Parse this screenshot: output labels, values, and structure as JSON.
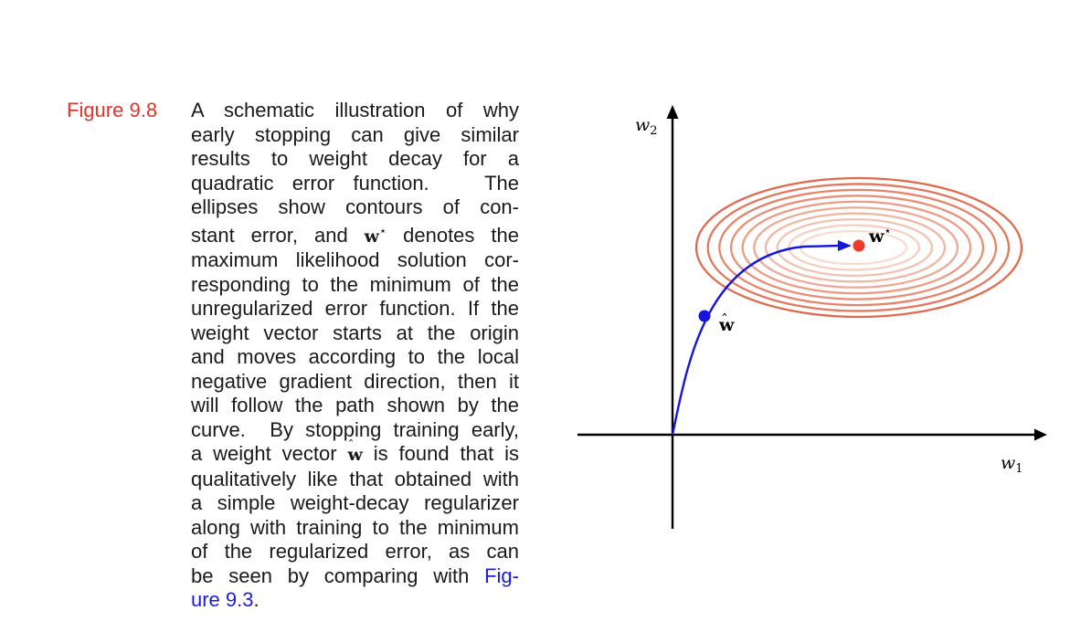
{
  "figure": {
    "label": "Figure 9.8",
    "caption": {
      "lines": [
        "A schematic illustration of why",
        "early stopping can give similar",
        "results to weight decay for a",
        "quadratic error function.   The",
        "ellipses show contours of con-",
        "stant error, and",
        "maximum likelihood solution cor-",
        "responding to the minimum of the",
        "unregularized error function. If the",
        "weight vector starts at the origin",
        "and moves according to the local",
        "negative gradient direction, then it",
        "will follow the path shown by the",
        "curve.  By stopping training early,",
        "a weight vector",
        "qualitatively like that obtained with",
        "a simple weight-decay regularizer",
        "along with training to the minimum",
        "of the regularized error, as can",
        "be seen by comparing with"
      ],
      "line6_math": "w",
      "line6_sup": "⋆",
      "line6_suffix": "denotes the",
      "line15_math": "w",
      "line15_hat": "ˆ",
      "line15_suffix": "is found that is",
      "ref_part1": "Fig-",
      "ref_part2": "ure 9.3",
      "end_period": "."
    }
  },
  "diagram": {
    "axis_x_label": "w",
    "axis_x_sub": "1",
    "axis_y_label": "w",
    "axis_y_sub": "2",
    "optimum_label": "w",
    "optimum_sup": "⋆",
    "early_stop_label": "w",
    "early_stop_hat": "ˆ",
    "contour_count": 10,
    "colors": {
      "ellipse_outer": "#e06a4d",
      "ellipse_inner": "#f6ddd0",
      "path": "#1515e0",
      "optimum_point": "#ee3a28",
      "early_stop_point": "#1515e0",
      "axes": "#000000",
      "figure_label": "#e8312a",
      "link": "#1c1ce6"
    }
  }
}
